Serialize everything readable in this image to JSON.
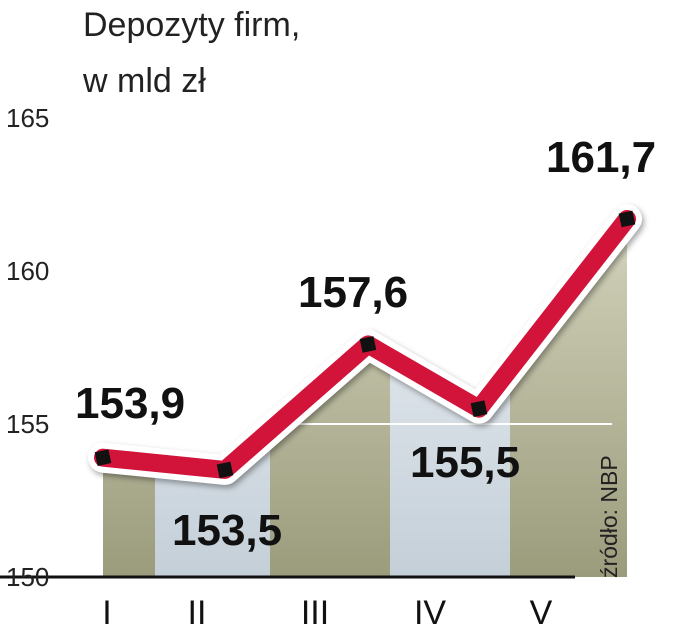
{
  "chart_data": {
    "type": "line",
    "title": "Depozyty firm,",
    "subtitle": "w mld zł",
    "categories": [
      "I",
      "II",
      "III",
      "IV",
      "V"
    ],
    "series": [
      {
        "values": [
          153.9,
          153.5,
          157.6,
          155.5,
          161.7
        ]
      }
    ],
    "data_labels": [
      "153,9",
      "153,5",
      "157,6",
      "155,5",
      "161,7"
    ],
    "y_ticks": [
      "150",
      "155",
      "160",
      "165"
    ],
    "ylim": [
      150,
      165
    ],
    "source": "źródło: NBP",
    "colors": {
      "line": "#d2143a",
      "marker": "#111111",
      "area_dark": "#a3a486",
      "area_light": "#cdd7df",
      "grid": "#ffffff"
    }
  }
}
